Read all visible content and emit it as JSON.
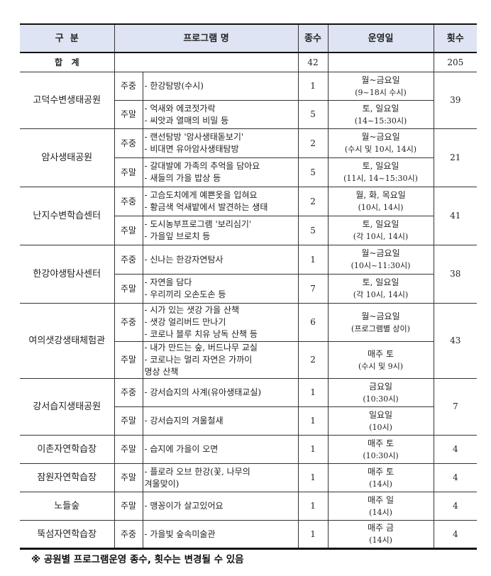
{
  "header": {
    "category": "구  분",
    "program": "프로그램 명",
    "types": "종수",
    "schedule": "운영일",
    "sessions": "횟수"
  },
  "total": {
    "label": "합   계",
    "types": "42",
    "sessions": "205"
  },
  "groups": [
    {
      "name": "고덕수변생태공원",
      "sessions": "39",
      "subs": [
        {
          "type": "주중",
          "programs": [
            "- 한강탐방(수시)"
          ],
          "count": "1",
          "schedule": [
            "월~금요일",
            "(9~18시 수시)"
          ]
        },
        {
          "type": "주말",
          "programs": [
            "- 억새와 에코젓가락",
            "- 씨앗과 열매의 비밀 등"
          ],
          "count": "5",
          "schedule": [
            "토, 일요일",
            "(14~15:30시)"
          ]
        }
      ]
    },
    {
      "name": "암사생태공원",
      "sessions": "21",
      "subs": [
        {
          "type": "주중",
          "programs": [
            "- 랜선탐방 '암사생태돋보기'",
            "- 비대면 유아암사생태탐방"
          ],
          "count": "2",
          "schedule": [
            "월~금요일",
            "(수시 및 10시, 14시)"
          ]
        },
        {
          "type": "주말",
          "programs": [
            "- 갈대발에 가족의 추억을 담아요",
            "- 새들의 가을 밥상 등"
          ],
          "count": "5",
          "schedule": [
            "토, 일요일",
            "(11시, 14~15:30시)"
          ]
        }
      ]
    },
    {
      "name": "난지수변학습센터",
      "sessions": "41",
      "subs": [
        {
          "type": "주중",
          "programs": [
            "- 고슴도치에게 예쁜옷을 입혀요",
            "- 황금색 억새밭에서 발견하는 생태"
          ],
          "count": "2",
          "schedule": [
            "월, 화, 목요일",
            "(10시, 14시)"
          ]
        },
        {
          "type": "주말",
          "programs": [
            "- 도시농부프로그램 '보리심기'",
            "- 가을잎 브로치 등"
          ],
          "count": "5",
          "schedule": [
            "토, 일요일",
            "(각 10시, 14시)"
          ]
        }
      ]
    },
    {
      "name": "한강야생탐사센터",
      "sessions": "38",
      "subs": [
        {
          "type": "주중",
          "programs": [
            "- 신나는 한강자연탐사"
          ],
          "count": "1",
          "schedule": [
            "월~금요일",
            "(10시~11:30시)"
          ]
        },
        {
          "type": "주말",
          "programs": [
            "- 자연을 담다",
            "- 우리끼리 오손도손 등"
          ],
          "count": "7",
          "schedule": [
            "토, 일요일",
            "(각 10시, 14시)"
          ]
        }
      ]
    },
    {
      "name": "여의샛강생태체험관",
      "sessions": "43",
      "subs": [
        {
          "type": "주중",
          "programs": [
            "- 시가 있는 샛강 가을 산책",
            "- 샛강 얼리버드 만나기",
            "- 코로나 블루 치유 낭독 산책 등"
          ],
          "count": "6",
          "schedule": [
            "월~금요일",
            "(프로그램별 상이)"
          ]
        },
        {
          "type": "주말",
          "programs": [
            "- 내가 만드는 숲, 버드나무 교실",
            "- 코로나는 멀리 자연은 가까이",
            "명상 산책"
          ],
          "count": "2",
          "schedule": [
            "매주 토",
            "(수시 및 9시)"
          ]
        }
      ]
    },
    {
      "name": "강서습지생태공원",
      "sessions": "7",
      "subs": [
        {
          "type": "주중",
          "programs": [
            "- 강서습지의 사계(유아생태교실)"
          ],
          "count": "1",
          "schedule": [
            "금요일",
            "(10:30시)"
          ]
        },
        {
          "type": "주말",
          "programs": [
            "- 강서습지의 겨울철새"
          ],
          "count": "1",
          "schedule": [
            "일요일",
            "(10시)"
          ]
        }
      ]
    },
    {
      "name": "이촌자연학습장",
      "sessions": "4",
      "subs": [
        {
          "type": "주말",
          "programs": [
            "- 습지에 가을이 오면"
          ],
          "count": "1",
          "schedule": [
            "매주 토",
            "(10:30시)"
          ]
        }
      ]
    },
    {
      "name": "잠원자연학습장",
      "sessions": "4",
      "subs": [
        {
          "type": "주말",
          "programs": [
            "- 플로라 오브 한강(꽃, 나무의",
            "겨울맞이)"
          ],
          "count": "1",
          "schedule": [
            "매주 토",
            "(14시)"
          ]
        }
      ]
    },
    {
      "name": "노들숲",
      "sessions": "4",
      "subs": [
        {
          "type": "주말",
          "programs": [
            "- 맹꽁이가 살고있어요"
          ],
          "count": "1",
          "schedule": [
            "매주 일",
            "(14시)"
          ]
        }
      ]
    },
    {
      "name": "뚝섬자연학습장",
      "sessions": "4",
      "subs": [
        {
          "type": "주중",
          "programs": [
            "- 가을빛 숲속미술관"
          ],
          "count": "1",
          "schedule": [
            "매주 금",
            "(14시)"
          ]
        }
      ]
    }
  ],
  "footnote": "※ 공원별 프로그램운영 종수, 횟수는 변경될 수 있음"
}
